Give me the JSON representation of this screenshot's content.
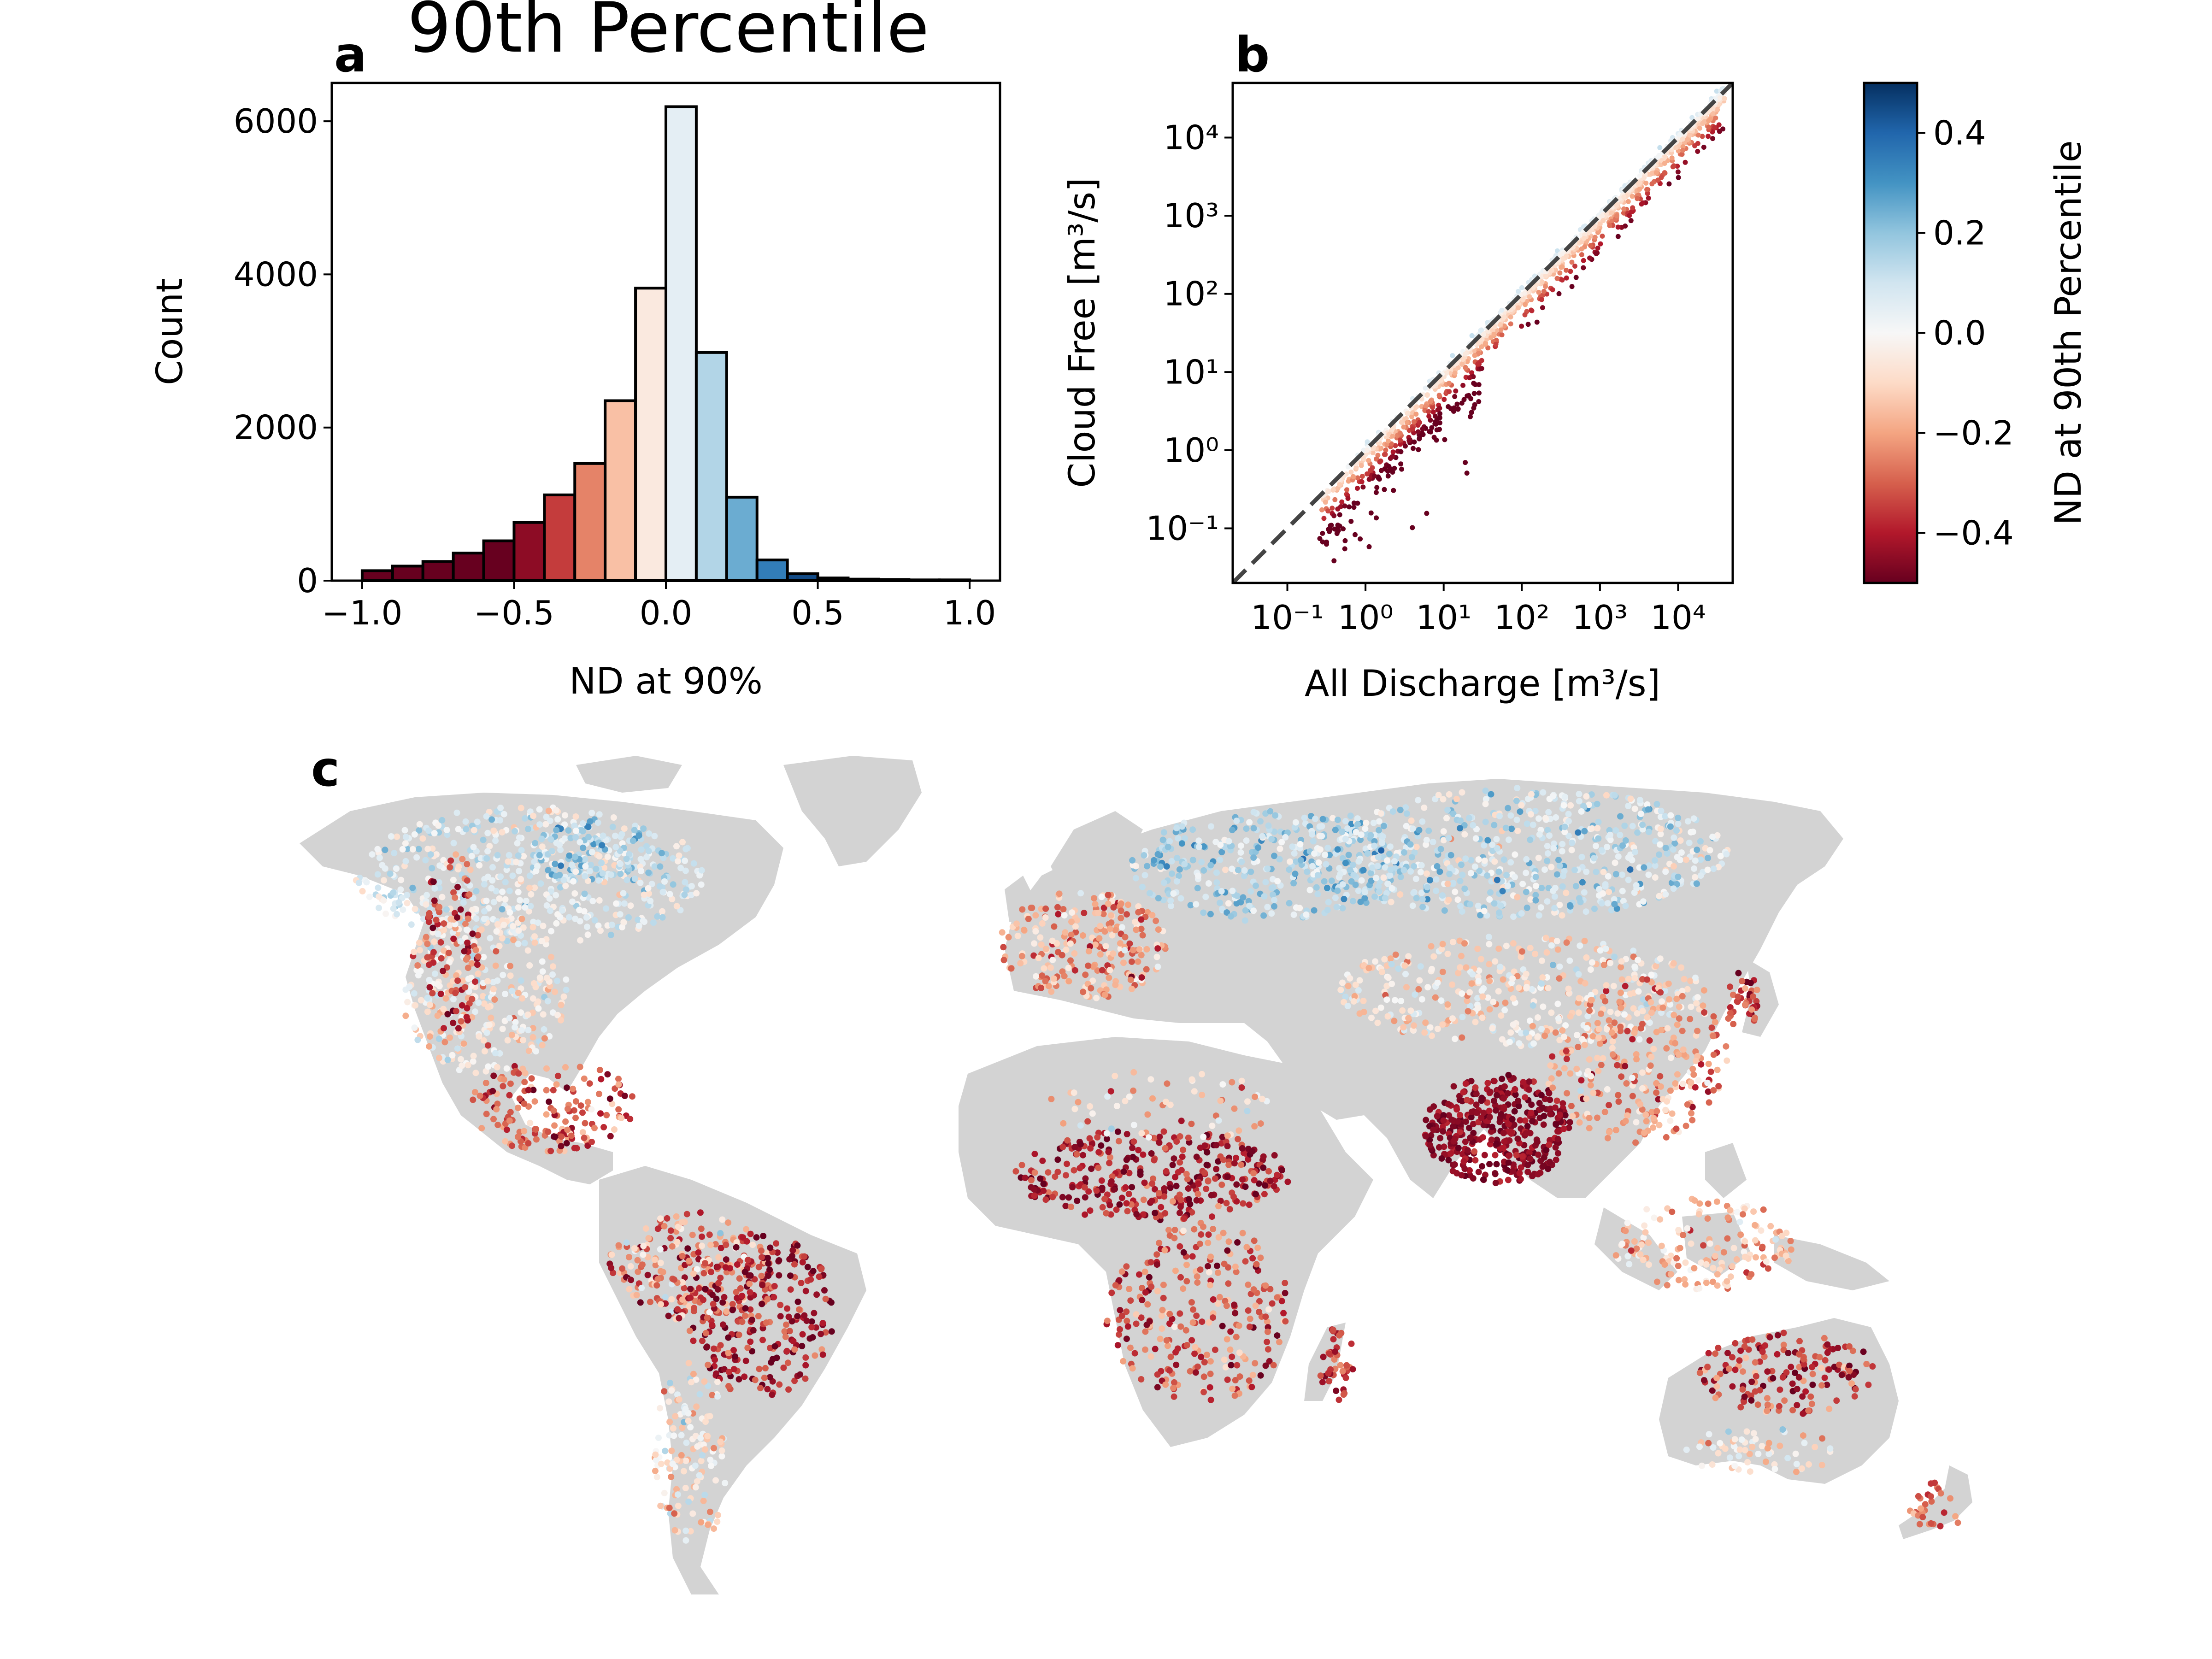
{
  "figure": {
    "title": "90th Percentile",
    "panel_labels": {
      "a": "a",
      "b": "b",
      "c": "c"
    }
  },
  "colors": {
    "colormap": [
      "#67001f",
      "#b2182b",
      "#d6604d",
      "#f4a582",
      "#fddbc7",
      "#f7f7f7",
      "#d1e5f0",
      "#92c5de",
      "#4393c3",
      "#2166ac",
      "#053061"
    ],
    "land": "#d3d3d3",
    "one_to_one_line": "#444444"
  },
  "chart_data": [
    {
      "type": "bar",
      "panel": "a",
      "xlabel": "ND at 90%",
      "ylabel": "Count",
      "xlim": [
        -1.1,
        1.1
      ],
      "ylim": [
        0,
        6500
      ],
      "xticks": [
        "−1.0",
        "−0.5",
        "0.0",
        "0.5",
        "1.0"
      ],
      "yticks": [
        "0",
        "2000",
        "4000",
        "6000"
      ],
      "bin_width": 0.1,
      "bins": [
        -1.0,
        -0.9,
        -0.8,
        -0.7,
        -0.6,
        -0.5,
        -0.4,
        -0.3,
        -0.2,
        -0.1,
        0.0,
        0.1,
        0.2,
        0.3,
        0.4,
        0.5,
        0.6,
        0.7,
        0.8,
        0.9
      ],
      "values": [
        130,
        190,
        250,
        360,
        520,
        760,
        1120,
        1530,
        2350,
        3820,
        6190,
        2980,
        1090,
        270,
        90,
        35,
        20,
        15,
        10,
        10
      ]
    },
    {
      "type": "scatter",
      "panel": "b",
      "xlabel": "All Discharge [m³/s]",
      "ylabel": "Cloud Free [m³/s]",
      "xscale": "log",
      "yscale": "log",
      "xlim": [
        0.02,
        50000
      ],
      "ylim": [
        0.02,
        50000
      ],
      "xticks": [
        "10⁻¹",
        "10⁰",
        "10¹",
        "10²",
        "10³",
        "10⁴"
      ],
      "yticks": [
        "10⁻¹",
        "10⁰",
        "10¹",
        "10²",
        "10³",
        "10⁴"
      ],
      "reference_line": "1:1 dashed",
      "colorbar": {
        "label": "ND at 90th Percentile",
        "range": [
          -0.5,
          0.5
        ],
        "ticks": [
          "0.4",
          "0.2",
          "0.0",
          "−0.2",
          "−0.4"
        ]
      }
    },
    {
      "type": "scatter",
      "panel": "c",
      "map": "world",
      "color_variable": "ND at 90th Percentile"
    }
  ]
}
